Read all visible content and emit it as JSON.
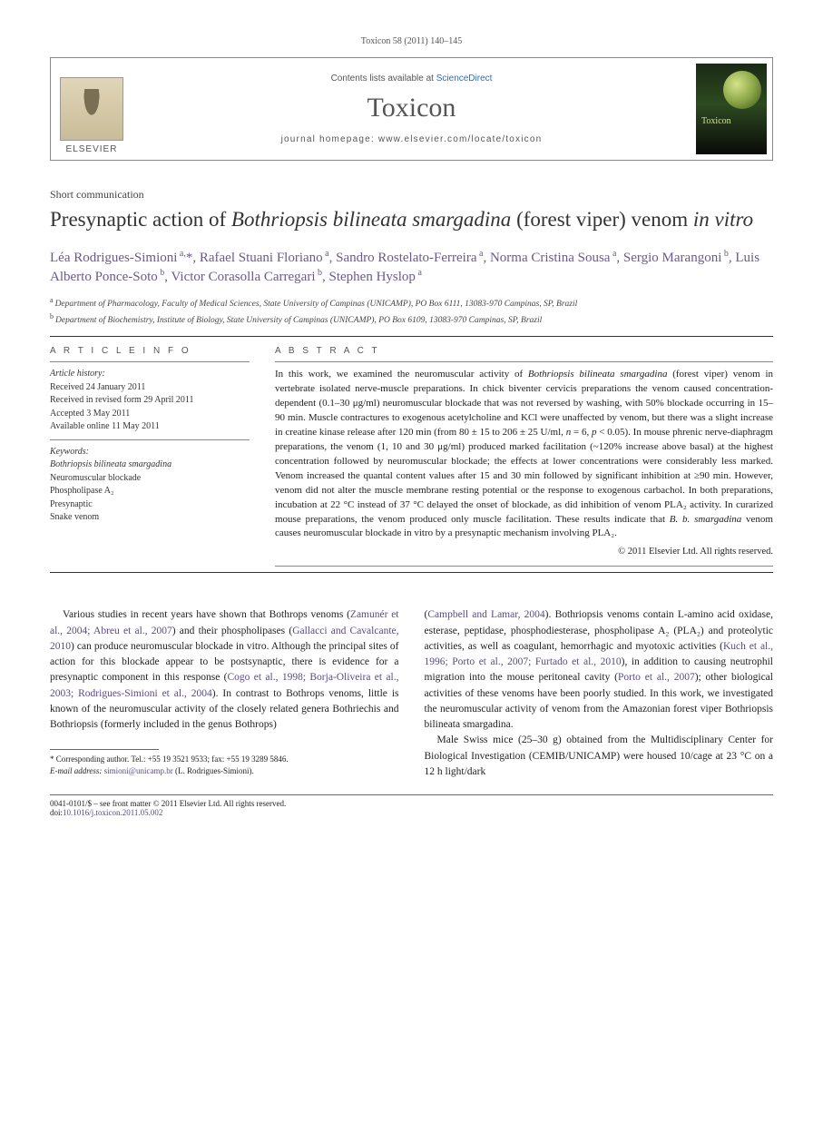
{
  "citation": "Toxicon 58 (2011) 140–145",
  "header": {
    "contents_prefix": "Contents lists available at ",
    "sciencedirect": "ScienceDirect",
    "journal": "Toxicon",
    "homepage_prefix": "journal homepage: ",
    "homepage_url": "www.elsevier.com/locate/toxicon",
    "publisher_label": "ELSEVIER",
    "cover_label": "Toxicon"
  },
  "article_type": "Short communication",
  "title_pre": "Presynaptic action of ",
  "title_italic": "Bothriopsis bilineata smargadina",
  "title_post1": " (forest viper) venom ",
  "title_italic2": "in vitro",
  "authors_html": "Léa Rodrigues-Simioni<sup> a,</sup>*, Rafael Stuani Floriano<sup> a</sup>, Sandro Rostelato-Ferreira<sup> a</sup>, Norma Cristina Sousa<sup> a</sup>, Sergio Marangoni<sup> b</sup>, Luis Alberto Ponce-Soto<sup> b</sup>, Victor Corasolla Carregari<sup> b</sup>, Stephen Hyslop<sup> a</sup>",
  "affiliations": [
    {
      "marker": "a",
      "text": "Department of Pharmacology, Faculty of Medical Sciences, State University of Campinas (UNICAMP), PO Box 6111, 13083-970 Campinas, SP, Brazil"
    },
    {
      "marker": "b",
      "text": "Department of Biochemistry, Institute of Biology, State University of Campinas (UNICAMP), PO Box 6109, 13083-970 Campinas, SP, Brazil"
    }
  ],
  "article_info_head": "A R T I C L E   I N F O",
  "abstract_head": "A B S T R A C T",
  "history_label": "Article history:",
  "history": [
    "Received 24 January 2011",
    "Received in revised form 29 April 2011",
    "Accepted 3 May 2011",
    "Available online 11 May 2011"
  ],
  "keywords_label": "Keywords:",
  "keywords": [
    "Bothriopsis bilineata smargadina",
    "Neuromuscular blockade",
    "Phospholipase A₂",
    "Presynaptic",
    "Snake venom"
  ],
  "abstract": "In this work, we examined the neuromuscular activity of <span class=\"italic\">Bothriopsis bilineata smargadina</span> (forest viper) venom in vertebrate isolated nerve-muscle preparations. In chick biventer cervicis preparations the venom caused concentration-dependent (0.1–30 μg/ml) neuromuscular blockade that was not reversed by washing, with 50% blockade occurring in 15–90 min. Muscle contractures to exogenous acetylcholine and KCl were unaffected by venom, but there was a slight increase in creatine kinase release after 120 min (from 80 ± 15 to 206 ± 25 U/ml, <span class=\"italic\">n</span> = 6, <span class=\"italic\">p</span> < 0.05). In mouse phrenic nerve-diaphragm preparations, the venom (1, 10 and 30 μg/ml) produced marked facilitation (~120% increase above basal) at the highest concentration followed by neuromuscular blockade; the effects at lower concentrations were considerably less marked. Venom increased the quantal content values after 15 and 30 min followed by significant inhibition at ≥90 min. However, venom did not alter the muscle membrane resting potential or the response to exogenous carbachol. In both preparations, incubation at 22 °C instead of 37 °C delayed the onset of blockade, as did inhibition of venom PLA₂ activity. In curarized mouse preparations, the venom produced only muscle facilitation. These results indicate that <span class=\"italic\">B. b. smargadina</span> venom causes neuromuscular blockade in vitro by a presynaptic mechanism involving PLA₂.",
  "copyright": "© 2011 Elsevier Ltd. All rights reserved.",
  "body_left": "Various studies in recent years have shown that <span class=\"italic\">Bothrops</span> venoms (<span class=\"ref-link\">Zamunér et al., 2004; Abreu et al., 2007</span>) and their phospholipases (<span class=\"ref-link\">Gallacci and Cavalcante, 2010</span>) can produce neuromuscular blockade <span class=\"italic\">in vitro</span>. Although the principal sites of action for this blockade appear to be postsynaptic, there is evidence for a presynaptic component in this response (<span class=\"ref-link\">Cogo et al., 1998; Borja-Oliveira et al., 2003; Rodrigues-Simioni et al., 2004</span>). In contrast to <span class=\"italic\">Bothrops</span> venoms, little is known of the neuromuscular activity of the closely related genera <span class=\"italic\">Bothriechis</span> and <span class=\"italic\">Bothriopsis</span> (formerly included in the genus <span class=\"italic\">Bothrops</span>)",
  "body_right_p1": "(<span class=\"ref-link\">Campbell and Lamar, 2004</span>). <span class=\"italic\">Bothriopsis</span> venoms contain L-amino acid oxidase, esterase, peptidase, phosphodiesterase, phospholipase A₂ (PLA₂) and proteolytic activities, as well as coagulant, hemorrhagic and myotoxic activities (<span class=\"ref-link\">Kuch et al., 1996; Porto et al., 2007; Furtado et al., 2010</span>), in addition to causing neutrophil migration into the mouse peritoneal cavity (<span class=\"ref-link\">Porto et al., 2007</span>); other biological activities of these venoms have been poorly studied. In this work, we investigated the neuromuscular activity of venom from the Amazonian forest viper <span class=\"italic\">Bothriopsis bilineata smargadina</span>.",
  "body_right_p2": "Male Swiss mice (25–30 g) obtained from the Multidisciplinary Center for Biological Investigation (CEMIB/UNICAMP) were housed 10/cage at 23 °C on a 12 h light/dark",
  "footnote": {
    "corr": "* Corresponding author. Tel.: +55 19 3521 9533; fax: +55 19 3289 5846.",
    "email_label": "E-mail address:",
    "email": "simioni@unicamp.br",
    "email_who": " (L. Rodrigues-Simioni)."
  },
  "bottom": {
    "left1": "0041-0101/$ – see front matter © 2011 Elsevier Ltd. All rights reserved.",
    "left2_pre": "doi:",
    "doi": "10.1016/j.toxicon.2011.05.002"
  }
}
